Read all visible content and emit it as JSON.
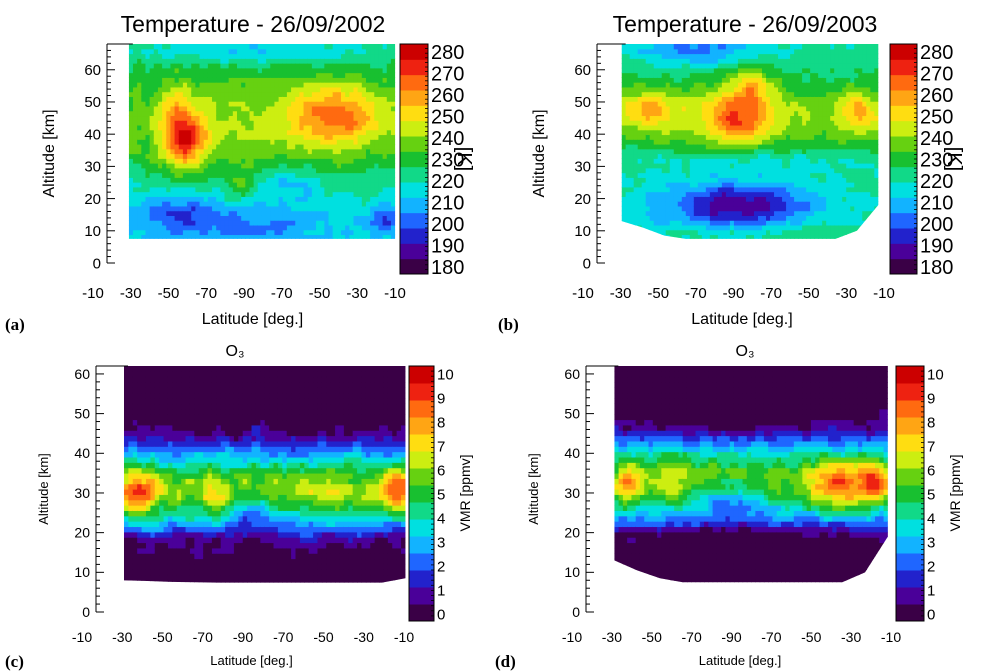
{
  "chart_data": [
    {
      "type": "heatmap",
      "panel_label": "(a)",
      "title": "Temperature - 26/09/2002",
      "xlabel": "Latitude [deg.]",
      "ylabel": "Altitude [km]",
      "xticks": [
        "-10",
        "-30",
        "-50",
        "-70",
        "-90",
        "-70",
        "-50",
        "-30",
        "-10"
      ],
      "yticks": [
        "0",
        "10",
        "20",
        "30",
        "40",
        "50",
        "60"
      ],
      "ylim": [
        0,
        68
      ],
      "colorbar": {
        "label": "[K]",
        "ticks": [
          "180",
          "190",
          "200",
          "210",
          "220",
          "230",
          "240",
          "250",
          "260",
          "270",
          "280"
        ],
        "range": [
          180,
          285
        ]
      },
      "variable": "temperature",
      "data_bottom_km": [
        7.5,
        7.5,
        7.5,
        7.5,
        7.5,
        7.5,
        7.5,
        7.5,
        7.5,
        7.5,
        7.5,
        7.5,
        7.5
      ]
    },
    {
      "type": "heatmap",
      "panel_label": "(b)",
      "title": "Temperature - 26/09/2003",
      "xlabel": "Latitude [deg.]",
      "ylabel": "Altitude [km]",
      "xticks": [
        "-10",
        "-30",
        "-50",
        "-70",
        "-90",
        "-70",
        "-50",
        "-30",
        "-10"
      ],
      "yticks": [
        "0",
        "10",
        "20",
        "30",
        "40",
        "50",
        "60"
      ],
      "ylim": [
        0,
        68
      ],
      "colorbar": {
        "label": "[K]",
        "ticks": [
          "180",
          "190",
          "200",
          "210",
          "220",
          "230",
          "240",
          "250",
          "260",
          "270",
          "280"
        ],
        "range": [
          180,
          285
        ]
      },
      "variable": "temperature",
      "data_bottom_km": [
        13,
        11,
        8.5,
        7.5,
        7.5,
        7.5,
        7.5,
        7.5,
        7.5,
        7.5,
        7.5,
        10,
        18
      ]
    },
    {
      "type": "heatmap",
      "panel_label": "(c)",
      "title": "O₃",
      "xlabel": "Latitude [deg.]",
      "ylabel": "Altitude [km]",
      "xticks": [
        "-10",
        "-30",
        "-50",
        "-70",
        "-90",
        "-70",
        "-50",
        "-30",
        "-10"
      ],
      "yticks": [
        "0",
        "10",
        "20",
        "30",
        "40",
        "50",
        "60"
      ],
      "ylim": [
        0,
        62
      ],
      "colorbar": {
        "label": "VMR [ppmv]",
        "ticks": [
          "0",
          "1",
          "2",
          "3",
          "4",
          "5",
          "6",
          "7",
          "8",
          "9",
          "10"
        ],
        "range": [
          0,
          10.5
        ]
      },
      "variable": "ozone",
      "data_bottom_km": [
        8,
        7.8,
        7.6,
        7.5,
        7.4,
        7.4,
        7.4,
        7.4,
        7.4,
        7.4,
        7.4,
        7.4,
        8.5
      ]
    },
    {
      "type": "heatmap",
      "panel_label": "(d)",
      "title": "O₃",
      "xlabel": "Latitude [deg.]",
      "ylabel": "Altitude [km]",
      "xticks": [
        "-10",
        "-30",
        "-50",
        "-70",
        "-90",
        "-70",
        "-50",
        "-30",
        "-10"
      ],
      "yticks": [
        "0",
        "10",
        "20",
        "30",
        "40",
        "50",
        "60"
      ],
      "ylim": [
        0,
        62
      ],
      "colorbar": {
        "label": "VMR [ppmv]",
        "ticks": [
          "0",
          "1",
          "2",
          "3",
          "4",
          "5",
          "6",
          "7",
          "8",
          "9",
          "10"
        ],
        "range": [
          0,
          10.5
        ]
      },
      "variable": "ozone",
      "data_bottom_km": [
        13,
        10.5,
        8.5,
        7.5,
        7.5,
        7.5,
        7.5,
        7.5,
        7.5,
        7.5,
        7.5,
        10,
        19
      ]
    }
  ],
  "colormap": [
    "#3a0046",
    "#4a0099",
    "#2222cc",
    "#1f66ff",
    "#12b3ff",
    "#00e0e0",
    "#11d988",
    "#18c030",
    "#66d111",
    "#ccee11",
    "#ffdd11",
    "#ffa514",
    "#ff6a10",
    "#ee2211",
    "#cc0000"
  ]
}
